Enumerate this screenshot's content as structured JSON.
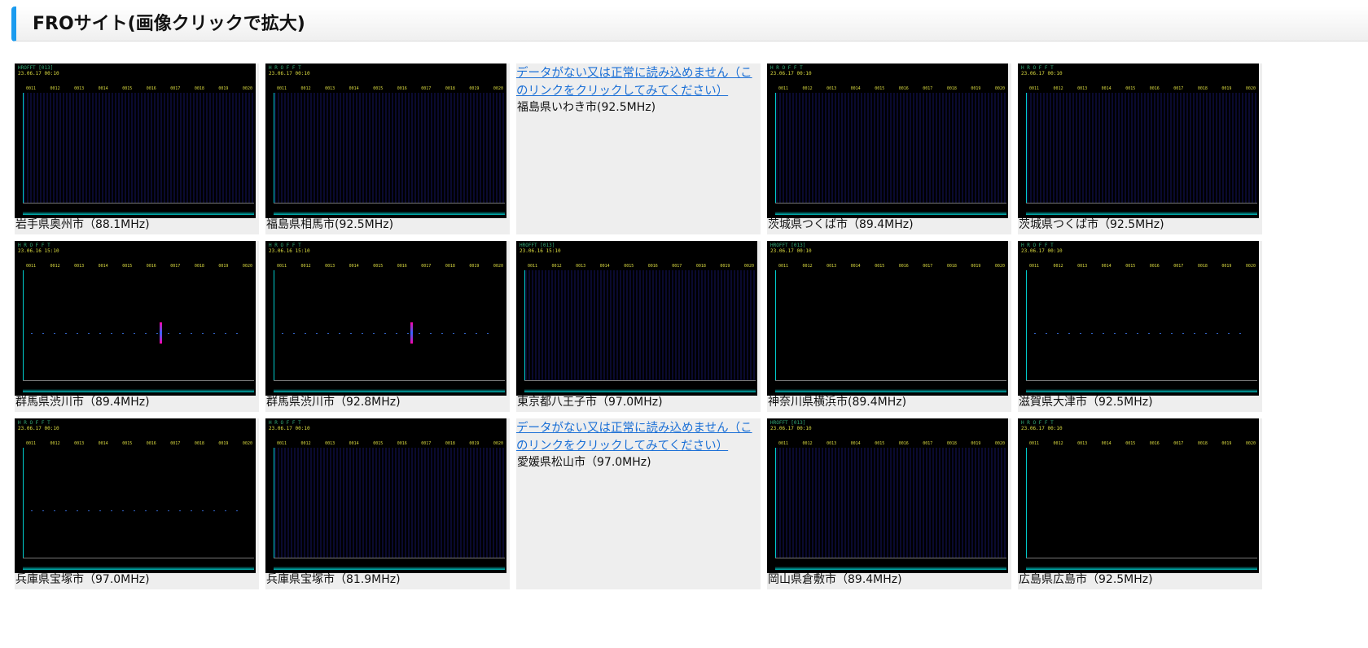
{
  "header": {
    "title": "FROサイト(画像クリックで拡大)"
  },
  "accent": "#1a9bef",
  "sites": [
    {
      "caption": "岩手県奥州市（88.1MHz)",
      "logo": "HROFFT [013]",
      "time": "23.06.17 00:10",
      "variant": "noise"
    },
    {
      "caption": "福島県相馬市(92.5MHz)",
      "logo": "H R O F F T",
      "time": "23.06.17 00:10",
      "variant": "noise"
    },
    {
      "caption": "福島県いわき市(92.5MHz)",
      "nodata": "データがない又は正常に読み込めません（このリンクをクリックしてみてください）"
    },
    {
      "caption": "茨城県つくば市（89.4MHz)",
      "logo": "H R O F F T",
      "time": "23.06.17 00:10",
      "variant": "noise"
    },
    {
      "caption": "茨城県つくば市（92.5MHz)",
      "logo": "H R O F F T",
      "time": "23.06.17 00:10",
      "variant": "noise"
    },
    {
      "caption": "群馬県渋川市（89.4MHz)",
      "logo": "H R O F F T",
      "time": "23.06.16 15:10",
      "variant": "spike"
    },
    {
      "caption": "群馬県渋川市（92.8MHz)",
      "logo": "H R O F F T",
      "time": "23.06.16 15:10",
      "variant": "spike"
    },
    {
      "caption": "東京都八王子市（97.0MHz)",
      "logo": "HROFFT [013]",
      "time": "23.06.16 15:10",
      "variant": "noise"
    },
    {
      "caption": "神奈川県横浜市(89.4MHz)",
      "logo": "HROFFT [013]",
      "time": "23.06.17 00:10",
      "variant": "dark"
    },
    {
      "caption": "滋賀県大津市（92.5MHz)",
      "logo": "H R O F F T",
      "time": "23.06.17 00:10",
      "variant": "line"
    },
    {
      "caption": "兵庫県宝塚市（97.0MHz)",
      "logo": "H R O F F T",
      "time": "23.06.17 00:10",
      "variant": "line"
    },
    {
      "caption": "兵庫県宝塚市（81.9MHz)",
      "logo": "H R O F F T",
      "time": "23.06.17 00:10",
      "variant": "noise"
    },
    {
      "caption": "愛媛県松山市（97.0MHz)",
      "nodata": "データがない又は正常に読み込めません（このリンクをクリックしてみてください）"
    },
    {
      "caption": "岡山県倉敷市（89.4MHz)",
      "logo": "HROFFT [013]",
      "time": "23.06.17 00:10",
      "variant": "noise"
    },
    {
      "caption": "広島県広島市（92.5MHz)",
      "logo": "H R O F F T",
      "time": "23.06.17 00:10",
      "variant": "dark"
    }
  ]
}
